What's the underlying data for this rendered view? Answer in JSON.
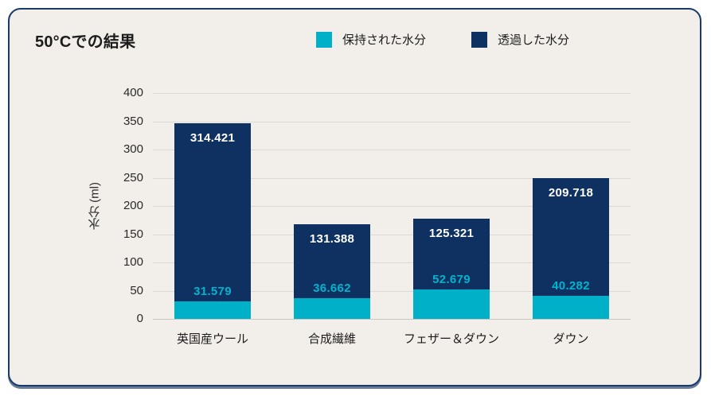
{
  "chart_data": {
    "type": "bar",
    "stacked": true,
    "title": "50°Cでの結果",
    "categories": [
      "英国産ウール",
      "合成繊維",
      "フェザー＆ダウン",
      "ダウン"
    ],
    "series": [
      {
        "name": "保持された水分",
        "color": "#00b0c8",
        "values": [
          31.579,
          36.662,
          52.679,
          40.282
        ],
        "labels": [
          "31.579",
          "36.662",
          "52.679",
          "40.282"
        ]
      },
      {
        "name": "透過した水分",
        "color": "#0e3161",
        "values": [
          314.421,
          131.388,
          125.321,
          209.718
        ],
        "labels": [
          "314.421",
          "131.388",
          "125.321",
          "209.718"
        ]
      }
    ],
    "totals": [
      346.0,
      168.05,
      178.0,
      250.0
    ],
    "xlabel": "",
    "ylabel": "水分 (ml)",
    "ylim": [
      0,
      400
    ],
    "ytick_step": 50,
    "yticks": [
      0,
      50,
      100,
      150,
      200,
      250,
      300,
      350,
      400
    ],
    "grid": true,
    "legend_position": "top",
    "colors": {
      "card_background": "#f2eee9",
      "card_border": "#1a3a6b",
      "gridline": "#dcd8d2",
      "retained_label_text": "#00b4cd",
      "permeated_label_text": "#ffffff",
      "text": "#1c1c1c"
    }
  }
}
